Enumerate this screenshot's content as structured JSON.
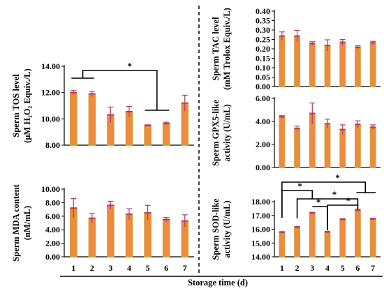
{
  "chart_data": [
    {
      "id": "tos",
      "type": "bar",
      "categories": [
        "1",
        "2",
        "3",
        "4",
        "5",
        "6",
        "7"
      ],
      "values": [
        12.0,
        11.9,
        10.3,
        10.55,
        9.5,
        9.65,
        11.2
      ],
      "errors": [
        0.15,
        0.2,
        0.6,
        0.4,
        0.05,
        0.1,
        0.6
      ],
      "ylabel": [
        "Sperm TOS level",
        "(μM H₂O₂ Equiv./L)"
      ],
      "ylim": [
        8,
        14
      ],
      "yticks": [
        "8.00",
        "10.00",
        "12.00",
        "14.00"
      ],
      "significance": [
        {
          "from": [
            "1",
            "2"
          ],
          "to": [
            "5",
            "6"
          ],
          "label": "*"
        }
      ]
    },
    {
      "id": "mda",
      "type": "bar",
      "categories": [
        "1",
        "2",
        "3",
        "4",
        "5",
        "6",
        "7"
      ],
      "values": [
        7.2,
        5.7,
        7.6,
        6.3,
        6.5,
        5.5,
        5.3
      ],
      "errors": [
        1.4,
        0.7,
        0.6,
        0.8,
        1.1,
        0.3,
        0.9
      ],
      "ylabel": [
        "Sperm MDA content",
        "(nM/mL)"
      ],
      "ylim": [
        0,
        10
      ],
      "yticks": [
        "0.00",
        "2.00",
        "4.00",
        "6.00",
        "8.00",
        "10.00"
      ]
    },
    {
      "id": "tac",
      "type": "bar",
      "categories": [
        "1",
        "2",
        "3",
        "4",
        "5",
        "6",
        "7"
      ],
      "values": [
        0.268,
        0.268,
        0.228,
        0.218,
        0.235,
        0.208,
        0.232
      ],
      "errors": [
        0.022,
        0.03,
        0.01,
        0.03,
        0.015,
        0.008,
        0.008
      ],
      "ylabel": [
        "Sperm TAC level",
        "(mM Trolox Equiv./L)"
      ],
      "ylim": [
        0,
        0.4
      ],
      "yticks": [
        "0.00",
        "0.05",
        "0.10",
        "0.15",
        "0.20",
        "0.25",
        "0.30",
        "0.35",
        "0.40"
      ]
    },
    {
      "id": "gpx",
      "type": "bar",
      "categories": [
        "1",
        "2",
        "3",
        "4",
        "5",
        "6",
        "7"
      ],
      "values": [
        4.4,
        3.4,
        4.7,
        3.8,
        3.3,
        3.75,
        3.5
      ],
      "errors": [
        0.1,
        0.2,
        0.9,
        0.4,
        0.4,
        0.3,
        0.2
      ],
      "ylabel": [
        "Sperm GPX5-like",
        "activity (U/mL)"
      ],
      "ylim": [
        0,
        6
      ],
      "yticks": [
        "0.00",
        "2.00",
        "4.00",
        "6.00"
      ]
    },
    {
      "id": "sod",
      "type": "bar",
      "categories": [
        "1",
        "2",
        "3",
        "4",
        "5",
        "6",
        "7"
      ],
      "values": [
        15.78,
        16.15,
        17.18,
        15.8,
        16.72,
        17.38,
        16.75
      ],
      "errors": [
        0.05,
        0.05,
        0.05,
        0.05,
        0.05,
        0.08,
        0.05
      ],
      "ylabel": [
        "Sperm SOD-like",
        "activity (U/mL)"
      ],
      "ylim": [
        14,
        18
      ],
      "yticks": [
        "14.00",
        "15.00",
        "16.00",
        "17.00",
        "18.00"
      ],
      "significance": [
        {
          "from": "1",
          "to": [
            "6",
            "7"
          ],
          "label": "*"
        },
        {
          "from": "1",
          "to": "3",
          "label": "*"
        },
        {
          "from": "2",
          "to": "6",
          "label": "*"
        },
        {
          "from": "3",
          "to": "4",
          "label": "*"
        },
        {
          "from": "4",
          "to": "6",
          "label": "*"
        }
      ]
    }
  ],
  "xlabel": "Storage time (d)",
  "colors": {
    "bar": "#f08a3c",
    "bar_edge": "#c9a33a",
    "bar_top": "#b23a6a",
    "error": "#b23a6a"
  }
}
